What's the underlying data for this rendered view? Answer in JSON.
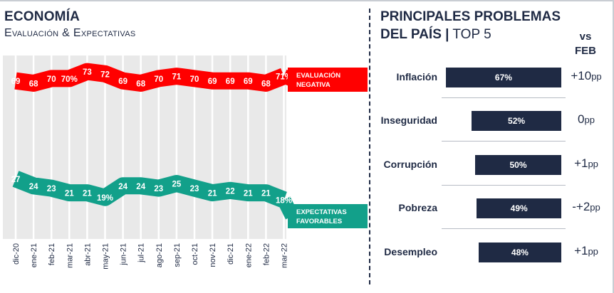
{
  "left_panel": {
    "title": "ECONOMÍA",
    "subtitle": "Evaluación & Expectativas"
  },
  "right_panel": {
    "title_line1": "PRINCIPALES PROBLEMAS",
    "title_line2_bold": "DEL PAÍS",
    "title_line2_sep": "|",
    "title_line2_rest": "TOP 5",
    "vs_label": "vs",
    "feb_label": "FEB"
  },
  "colors": {
    "red": "#ff0000",
    "teal": "#12a08a",
    "navy": "#1f2a44"
  },
  "chart_data": [
    {
      "type": "line",
      "title": "ECONOMÍA",
      "subtitle": "Evaluación & Expectativas",
      "categories": [
        "dic-20",
        "ene-21",
        "feb-21",
        "mar-21",
        "abr-21",
        "may-21",
        "jun-21",
        "jul-21",
        "ago-21",
        "sep-21",
        "oct-21",
        "nov-21",
        "dic-21",
        "ene-22",
        "feb-22",
        "mar-22"
      ],
      "series": [
        {
          "name": "EVALUACIÓN NEGATIVA",
          "values": [
            69,
            68,
            70,
            70,
            73,
            72,
            69,
            68,
            70,
            71,
            70,
            69,
            69,
            69,
            68,
            71
          ],
          "labels": [
            "69",
            "68",
            "70",
            "70%",
            "73",
            "72",
            "69",
            "68",
            "70",
            "71",
            "70",
            "69",
            "69",
            "69",
            "68",
            "71%"
          ]
        },
        {
          "name": "EXPECTATIVAS FAVORABLES",
          "values": [
            27,
            24,
            23,
            21,
            21,
            19,
            24,
            24,
            23,
            25,
            23,
            21,
            22,
            21,
            21,
            18
          ],
          "labels": [
            "27",
            "24",
            "23",
            "21",
            "21",
            "19%",
            "24",
            "24",
            "23",
            "25",
            "23",
            "21",
            "22",
            "21",
            "21",
            "18%"
          ]
        }
      ],
      "ylim": [
        0,
        100
      ],
      "grid": true,
      "legend": "right"
    },
    {
      "type": "bar",
      "orientation": "horizontal",
      "title": "PRINCIPALES PROBLEMAS DEL PAÍS | TOP 5",
      "categories": [
        "Inflación",
        "Inseguridad",
        "Corrupción",
        "Pobreza",
        "Desempleo"
      ],
      "values": [
        67,
        52,
        50,
        49,
        48
      ],
      "value_labels": [
        "67%",
        "52%",
        "50%",
        "49%",
        "48%"
      ],
      "vs_feb": [
        "+10pp",
        "0pp",
        "+1pp",
        "-+2pp",
        "+1pp"
      ]
    }
  ]
}
